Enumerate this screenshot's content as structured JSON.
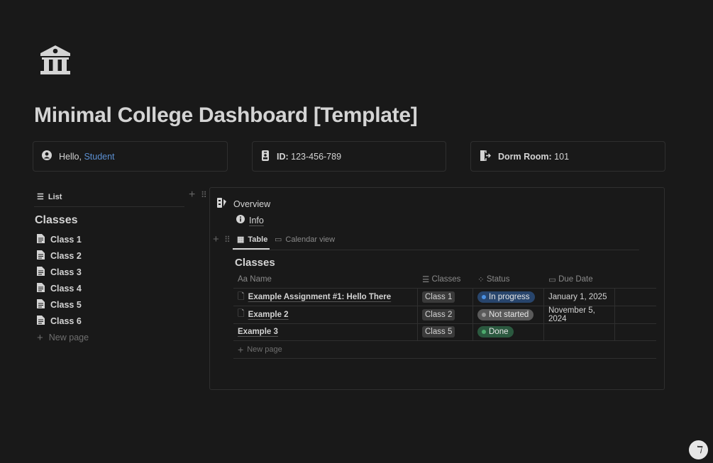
{
  "page": {
    "icon": "building-columns-icon",
    "title": "Minimal College Dashboard [Template]"
  },
  "cards": [
    {
      "icon": "user-circle-icon",
      "label": "Hello, ",
      "link": "Student"
    },
    {
      "icon": "id-badge-icon",
      "label": "ID:",
      "value": " 123-456-789"
    },
    {
      "icon": "door-exit-icon",
      "label": "Dorm Room:",
      "value": " 101"
    }
  ],
  "sidebar": {
    "view_label": "List",
    "heading": "Classes",
    "items": [
      {
        "label": "Class 1"
      },
      {
        "label": "Class 2"
      },
      {
        "label": "Class 3"
      },
      {
        "label": "Class 4"
      },
      {
        "label": "Class 5"
      },
      {
        "label": "Class 6"
      }
    ],
    "new_page": "New page"
  },
  "main": {
    "overview": "Overview",
    "info": "Info",
    "tabs": [
      {
        "label": "Table",
        "active": true
      },
      {
        "label": "Calendar view"
      }
    ],
    "db_title": "Classes",
    "columns": [
      "Aa Name",
      "Classes",
      "Status",
      "Due Date"
    ],
    "rows": [
      {
        "name": "Example Assignment #1: Hello There",
        "class": "Class 1",
        "status": "In progress",
        "due": "January 1, 2025"
      },
      {
        "name": "Example 2",
        "class": "Class 2",
        "status": "Not started",
        "due": "November 5, 2024"
      },
      {
        "name": "Example 3",
        "class": "Class 5",
        "status": "Done",
        "due": ""
      }
    ],
    "new_page": "New page"
  },
  "colors": {
    "in_progress": "#28456c",
    "not_started": "#5a5a5a",
    "done": "#2b593f",
    "link": "#5b8fd1"
  }
}
